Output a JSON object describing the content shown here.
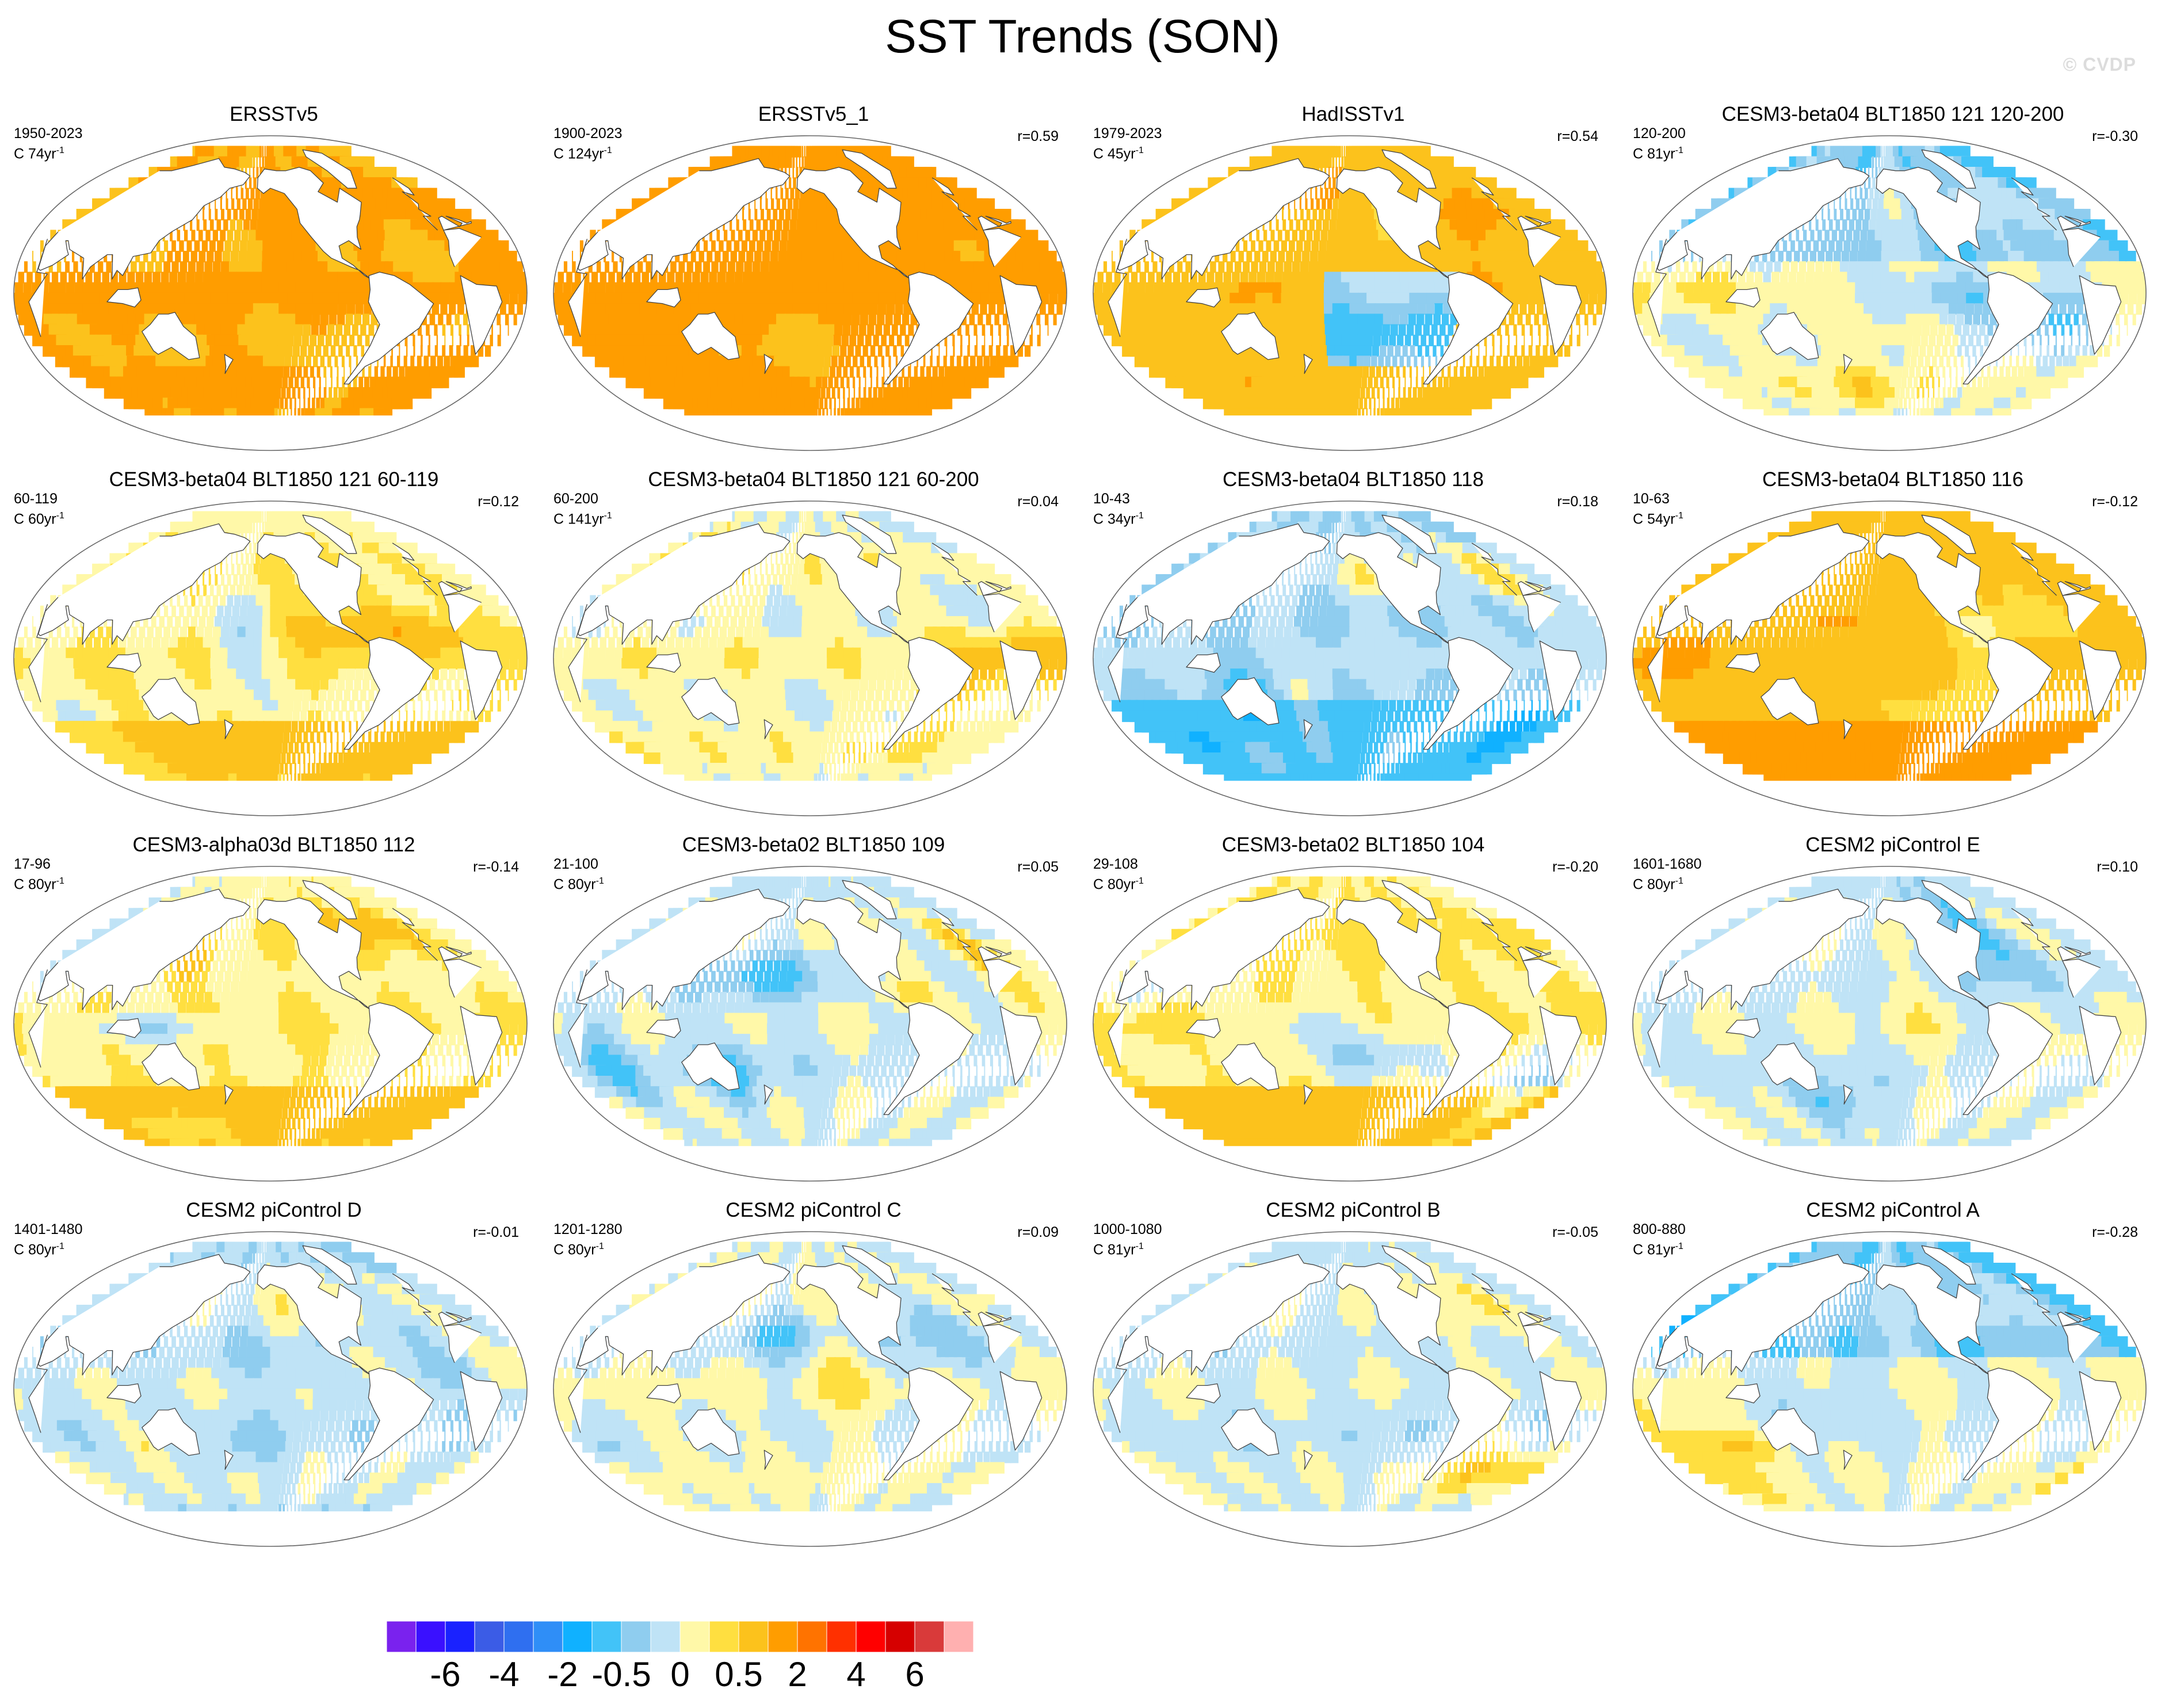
{
  "title": "SST Trends (SON)",
  "watermark": "© CVDP",
  "panels": [
    {
      "name": "ERSSTv5",
      "period": "1950-2023",
      "length_prefix": "C 74yr",
      "length_sup": "-1",
      "corr": "",
      "anomaly": 1.1,
      "pattern": "warm"
    },
    {
      "name": "ERSSTv5_1",
      "period": "1900-2023",
      "length_prefix": "C 124yr",
      "length_sup": "-1",
      "corr": "r=0.59",
      "anomaly": 1.2,
      "pattern": "warm"
    },
    {
      "name": "HadISSTv1",
      "period": "1979-2023",
      "length_prefix": "C 45yr",
      "length_sup": "-1",
      "corr": "r=0.54",
      "anomaly": 0.8,
      "pattern": "warm_east_cool"
    },
    {
      "name": "CESM3-beta04 BLT1850 121 120-200",
      "period": "120-200",
      "length_prefix": "C 81yr",
      "length_sup": "-1",
      "corr": "r=-0.30",
      "anomaly": 0.05,
      "pattern": "north_cool"
    },
    {
      "name": "CESM3-beta04 BLT1850 121 60-119",
      "period": "60-119",
      "length_prefix": "C 60yr",
      "length_sup": "-1",
      "corr": "r=0.12",
      "anomaly": 0.2,
      "pattern": "mixed_south_warm"
    },
    {
      "name": "CESM3-beta04 BLT1850 121 60-200",
      "period": "60-200",
      "length_prefix": "C 141yr",
      "length_sup": "-1",
      "corr": "r=0.04",
      "anomaly": 0.1,
      "pattern": "mixed"
    },
    {
      "name": "CESM3-beta04 BLT1850 118",
      "period": "10-43",
      "length_prefix": "C 34yr",
      "length_sup": "-1",
      "corr": "r=0.18",
      "anomaly": -0.2,
      "pattern": "south_cool"
    },
    {
      "name": "CESM3-beta04 BLT1850 116",
      "period": "10-63",
      "length_prefix": "C 54yr",
      "length_sup": "-1",
      "corr": "r=-0.12",
      "anomaly": 0.7,
      "pattern": "warm_south_strong"
    },
    {
      "name": "CESM3-alpha03d BLT1850 112",
      "period": "17-96",
      "length_prefix": "C 80yr",
      "length_sup": "-1",
      "corr": "r=-0.14",
      "anomaly": 0.2,
      "pattern": "mixed_south_warm"
    },
    {
      "name": "CESM3-beta02 BLT1850 109",
      "period": "21-100",
      "length_prefix": "C 80yr",
      "length_sup": "-1",
      "corr": "r=0.05",
      "anomaly": -0.05,
      "pattern": "mixed"
    },
    {
      "name": "CESM3-beta02 BLT1850 104",
      "period": "29-108",
      "length_prefix": "C 80yr",
      "length_sup": "-1",
      "corr": "r=-0.20",
      "anomaly": 0.3,
      "pattern": "mixed_south_warm"
    },
    {
      "name": "CESM2 piControl E",
      "period": "1601-1680",
      "length_prefix": "C 80yr",
      "length_sup": "-1",
      "corr": "r=0.10",
      "anomaly": -0.05,
      "pattern": "mixed"
    },
    {
      "name": "CESM2 piControl D",
      "period": "1401-1480",
      "length_prefix": "C 80yr",
      "length_sup": "-1",
      "corr": "r=-0.01",
      "anomaly": -0.1,
      "pattern": "mixed"
    },
    {
      "name": "CESM2 piControl C",
      "period": "1201-1280",
      "length_prefix": "C 80yr",
      "length_sup": "-1",
      "corr": "r=0.09",
      "anomaly": 0.05,
      "pattern": "mixed"
    },
    {
      "name": "CESM2 piControl B",
      "period": "1000-1080",
      "length_prefix": "C 81yr",
      "length_sup": "-1",
      "corr": "r=-0.05",
      "anomaly": -0.05,
      "pattern": "mixed"
    },
    {
      "name": "CESM2 piControl A",
      "period": "800-880",
      "length_prefix": "C 81yr",
      "length_sup": "-1",
      "corr": "r=-0.28",
      "anomaly": 0.0,
      "pattern": "north_cool"
    }
  ],
  "colorbar": {
    "colors": [
      "#7a22ee",
      "#3a10ff",
      "#1a22ff",
      "#3b5ce6",
      "#2f6ff0",
      "#2f8ef7",
      "#10b1ff",
      "#42c3f8",
      "#8fcdef",
      "#bfe3f6",
      "#fff8a8",
      "#ffdf40",
      "#fcc21c",
      "#ff9d00",
      "#ff7300",
      "#ff3000",
      "#ff0000",
      "#d60000",
      "#d93a3a",
      "#ffb0b0"
    ],
    "labels": [
      {
        "text": "-6",
        "boundary": 2
      },
      {
        "text": "-4",
        "boundary": 4
      },
      {
        "text": "-2",
        "boundary": 6
      },
      {
        "text": "-0.5",
        "boundary": 8
      },
      {
        "text": "0",
        "boundary": 10
      },
      {
        "text": "0.5",
        "boundary": 12
      },
      {
        "text": "2",
        "boundary": 14
      },
      {
        "text": "4",
        "boundary": 16
      },
      {
        "text": "6",
        "boundary": 18
      }
    ]
  }
}
